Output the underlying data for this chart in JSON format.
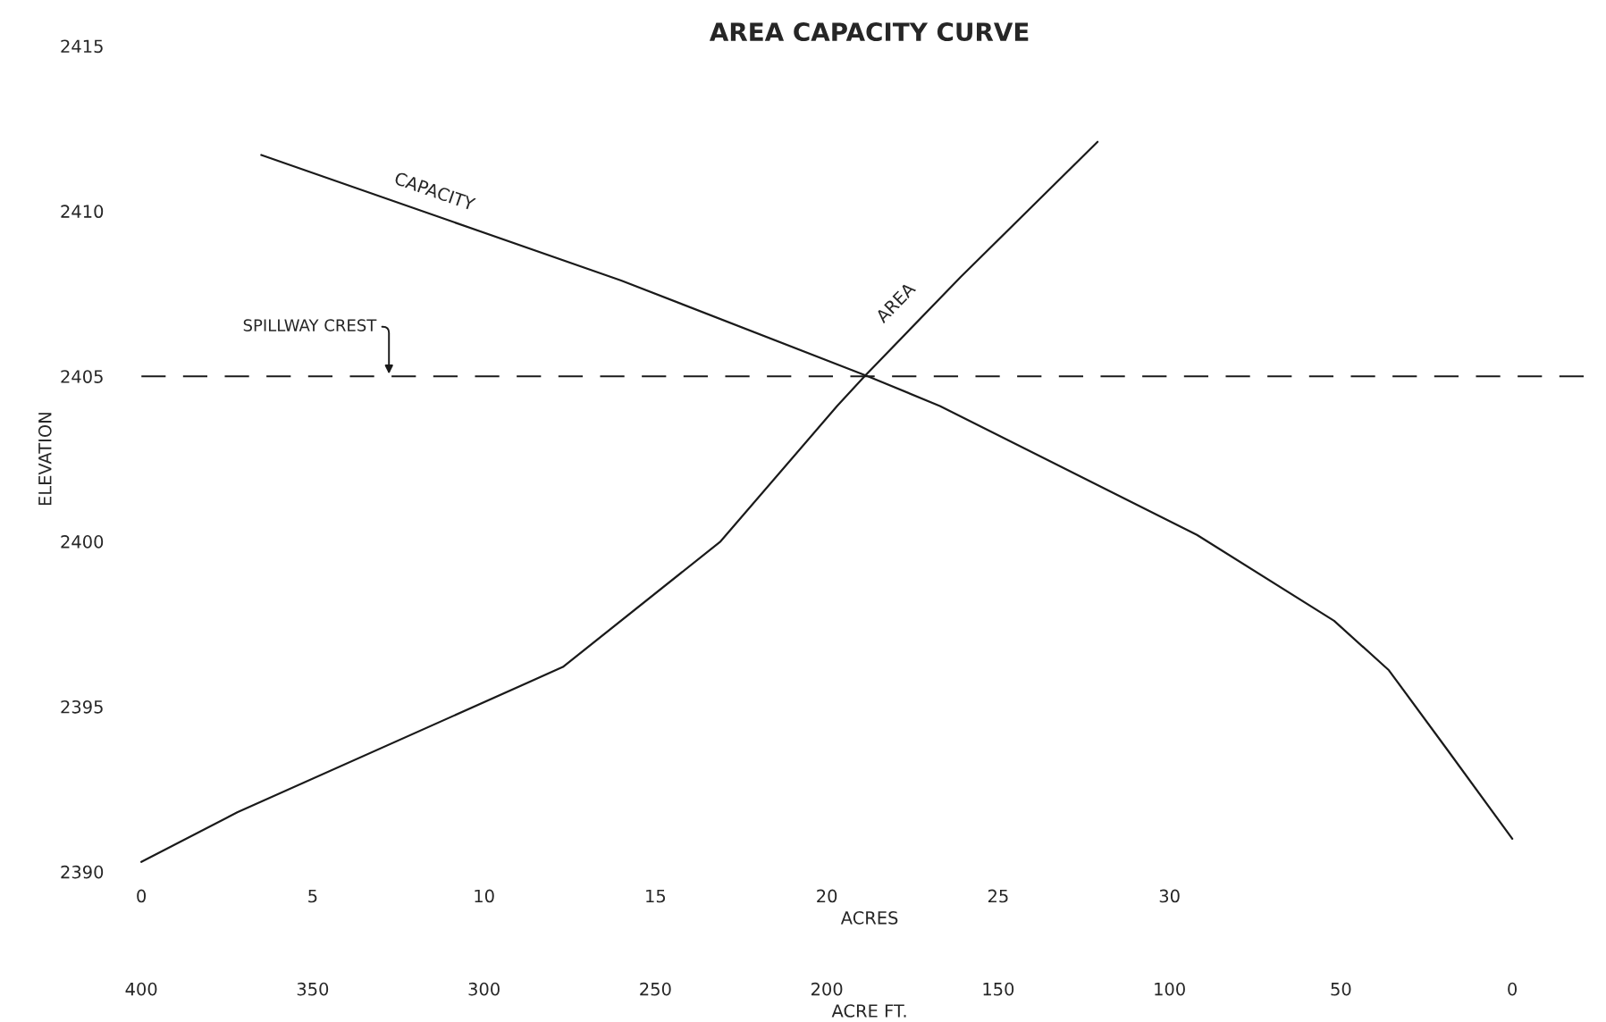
{
  "chart_data": {
    "type": "line",
    "title": "AREA CAPACITY CURVE",
    "xlabel": "ACRES",
    "x2label": "ACRE FT.",
    "ylabel": "ELEVATION",
    "xlim": [
      0,
      42.5
    ],
    "xticks": [
      0,
      5,
      10,
      15,
      20,
      25,
      30
    ],
    "x2lim": [
      400,
      -25
    ],
    "x2ticks": [
      400,
      350,
      300,
      250,
      200,
      150,
      100,
      50,
      0
    ],
    "ylim": [
      2390,
      2415
    ],
    "yticks": [
      2390,
      2395,
      2400,
      2405,
      2410,
      2415
    ],
    "grid": false,
    "legend": false,
    "marker": "none",
    "series": [
      {
        "name": "AREA",
        "color": "#1a1a1a",
        "line_style": "solid",
        "x": [
          0,
          2.8,
          12.3,
          16.9,
          20.3,
          21.1,
          23.9,
          27.9
        ],
        "values": [
          2390.3,
          2391.8,
          2396.2,
          2400.0,
          2404.1,
          2405.0,
          2408.0,
          2412.1
        ]
      },
      {
        "name": "CAPACITY",
        "color": "#1a1a1a",
        "line_style": "solid",
        "axis": "x2",
        "x": [
          365,
          260,
          188,
          167,
          92,
          52,
          36,
          19,
          0
        ],
        "values": [
          2411.7,
          2407.9,
          2405.0,
          2404.1,
          2400.2,
          2397.6,
          2396.1,
          2393.7,
          2391.0
        ]
      }
    ],
    "ref_lines": [
      {
        "axis": "y",
        "value": 2405,
        "label": "SPILLWAY CREST",
        "color": "#1a1a1a",
        "line_style": "dashed"
      }
    ]
  }
}
